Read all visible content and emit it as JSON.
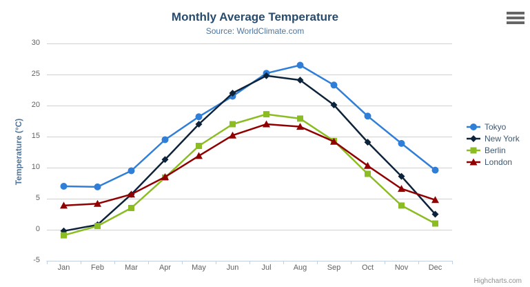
{
  "chart_data": {
    "type": "line",
    "title": "Monthly Average Temperature",
    "subtitle": "Source: WorldClimate.com",
    "xlabel": "",
    "ylabel": "Temperature (°C)",
    "categories": [
      "Jan",
      "Feb",
      "Mar",
      "Apr",
      "May",
      "Jun",
      "Jul",
      "Aug",
      "Sep",
      "Oct",
      "Nov",
      "Dec"
    ],
    "yticks": [
      -5,
      0,
      5,
      10,
      15,
      20,
      25,
      30
    ],
    "ylim": [
      -5,
      30
    ],
    "grid": true,
    "legend_position": "right",
    "grid_color": "#d0d0d0",
    "axis_line_color": "#c0d0e0",
    "axis_label_color": "#606060",
    "legend_text_color": "#3e576f",
    "series": [
      {
        "name": "Tokyo",
        "color": "#2f7ed8",
        "marker": "circle",
        "values": [
          7.0,
          6.9,
          9.5,
          14.5,
          18.2,
          21.5,
          25.2,
          26.5,
          23.3,
          18.3,
          13.9,
          9.6
        ]
      },
      {
        "name": "New York",
        "color": "#0d233a",
        "marker": "diamond",
        "values": [
          -0.2,
          0.8,
          5.7,
          11.3,
          17.0,
          22.0,
          24.8,
          24.1,
          20.1,
          14.1,
          8.6,
          2.5
        ]
      },
      {
        "name": "Berlin",
        "color": "#8bbc21",
        "marker": "square",
        "values": [
          -0.9,
          0.6,
          3.5,
          8.4,
          13.5,
          17.0,
          18.6,
          17.9,
          14.3,
          9.0,
          3.9,
          1.0
        ]
      },
      {
        "name": "London",
        "color": "#910000",
        "marker": "triangle",
        "values": [
          3.9,
          4.2,
          5.7,
          8.5,
          11.9,
          15.2,
          17.0,
          16.6,
          14.2,
          10.3,
          6.6,
          4.8
        ]
      }
    ]
  },
  "icons": {
    "context_menu": "hamburger-menu-icon"
  },
  "credits": {
    "text": "Highcharts.com"
  }
}
